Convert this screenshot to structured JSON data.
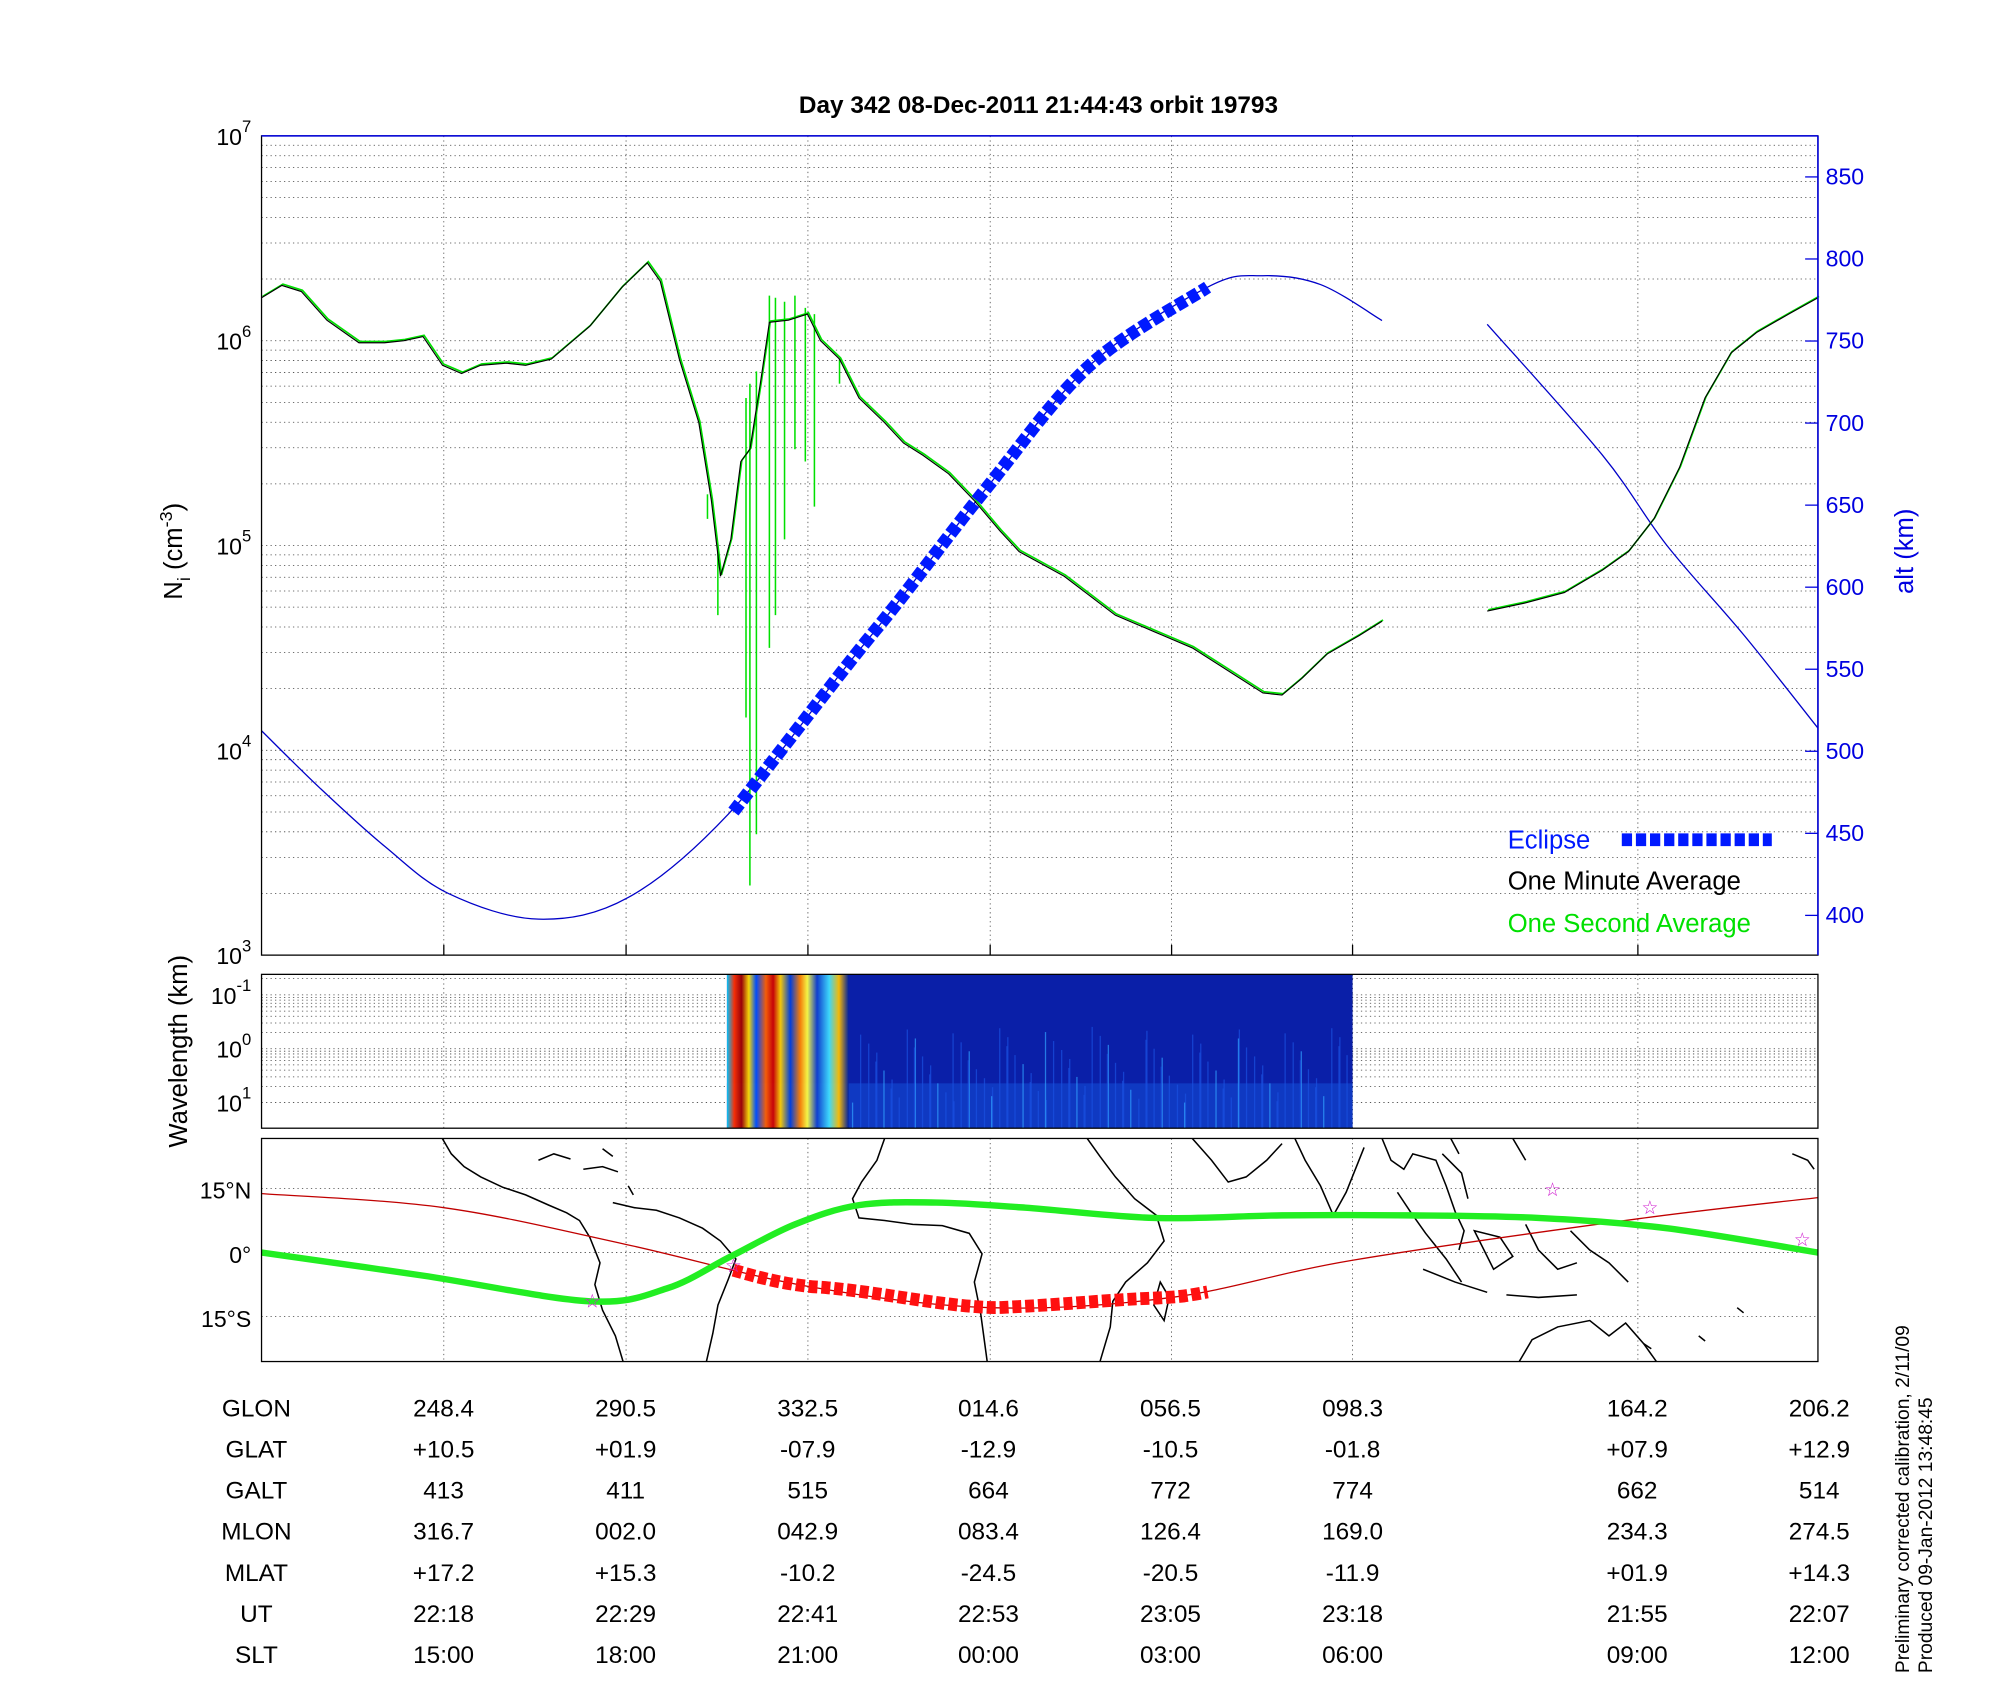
{
  "title": "Day 342  08-Dec-2011 21:44:43   orbit 19793",
  "colors": {
    "alt": "#0000c8",
    "eclipse": "#0019ff",
    "minute": "#000000",
    "second": "#00e000",
    "track": "#c00000",
    "track_eclipse": "#ff1010",
    "mag_equator": "#22ee22",
    "star": "#d020d0"
  },
  "chart_data": [
    {
      "type": "line",
      "title": "Day 342  08-Dec-2011 21:44:43   orbit 19793",
      "x_unit": "GLON (deg, unwrapped)",
      "xlim": [
        206.3,
        565.8
      ],
      "x_gridlines": [
        248.4,
        290.5,
        332.5,
        374.6,
        416.5,
        458.3,
        524.2
      ],
      "ylabel": {
        "main": "N",
        "sub": "i",
        "unit": " (cm",
        "sup": "-3",
        "close": ")"
      },
      "y_scale": "log",
      "ylim_log10": [
        3,
        7
      ],
      "y_ticks": [
        {
          "base": "10",
          "exp": "3",
          "v": 3
        },
        {
          "base": "10",
          "exp": "4",
          "v": 4
        },
        {
          "base": "10",
          "exp": "5",
          "v": 5
        },
        {
          "base": "10",
          "exp": "6",
          "v": 6
        },
        {
          "base": "10",
          "exp": "7",
          "v": 7
        }
      ],
      "y2label": "alt (km)",
      "y2lim": [
        375.8,
        875
      ],
      "y2_ticks": [
        "400",
        "450",
        "500",
        "550",
        "600",
        "650",
        "700",
        "750",
        "800",
        "850"
      ],
      "legend": {
        "placement": "bottom-right",
        "entries": [
          "Eclipse",
          "One Minute Average",
          "One Second Average"
        ]
      },
      "series": [
        {
          "name": "One Minute Average (log10 Ni)",
          "segments": [
            [
              [
                206.3,
                6.21
              ],
              [
                211.0,
                6.27
              ],
              [
                215.5,
                6.24
              ],
              [
                221.4,
                6.1
              ],
              [
                228.8,
                5.99
              ],
              [
                234.7,
                5.99
              ],
              [
                239.2,
                6.0
              ],
              [
                243.6,
                6.02
              ],
              [
                248.1,
                5.88
              ],
              [
                252.5,
                5.84
              ],
              [
                256.9,
                5.88
              ],
              [
                262.9,
                5.89
              ],
              [
                267.3,
                5.88
              ],
              [
                273.2,
                5.91
              ],
              [
                282.1,
                6.07
              ],
              [
                289.5,
                6.26
              ],
              [
                295.4,
                6.38
              ],
              [
                298.4,
                6.29
              ],
              [
                302.8,
                5.91
              ],
              [
                307.3,
                5.6
              ],
              [
                310.2,
                5.22
              ],
              [
                312.3,
                4.85
              ],
              [
                314.7,
                5.03
              ],
              [
                317.0,
                5.41
              ],
              [
                319.1,
                5.47
              ],
              [
                321.5,
                5.79
              ],
              [
                323.6,
                6.09
              ],
              [
                328.0,
                6.1
              ],
              [
                332.4,
                6.13
              ],
              [
                335.4,
                6.0
              ],
              [
                339.8,
                5.91
              ],
              [
                344.3,
                5.72
              ],
              [
                350.2,
                5.6
              ],
              [
                354.6,
                5.5
              ],
              [
                359.1,
                5.44
              ],
              [
                365.0,
                5.35
              ],
              [
                370.9,
                5.22
              ],
              [
                376.9,
                5.07
              ],
              [
                381.3,
                4.97
              ],
              [
                391.7,
                4.85
              ],
              [
                403.5,
                4.66
              ],
              [
                412.4,
                4.58
              ],
              [
                421.3,
                4.5
              ],
              [
                430.2,
                4.38
              ],
              [
                437.6,
                4.28
              ],
              [
                442.0,
                4.27
              ],
              [
                446.5,
                4.35
              ],
              [
                452.4,
                4.47
              ],
              [
                459.8,
                4.56
              ],
              [
                465.1,
                4.63
              ]
            ],
            [
              [
                489.4,
                4.68
              ],
              [
                498.3,
                4.72
              ],
              [
                507.2,
                4.77
              ],
              [
                516.0,
                4.88
              ],
              [
                522.0,
                4.97
              ],
              [
                527.9,
                5.13
              ],
              [
                533.8,
                5.38
              ],
              [
                539.7,
                5.72
              ],
              [
                545.7,
                5.94
              ],
              [
                551.6,
                6.04
              ],
              [
                559.0,
                6.13
              ],
              [
                565.8,
                6.21
              ]
            ]
          ]
        },
        {
          "name": "One Second Average spikes (glon, log10 top, log10 bottom)",
          "spikes": [
            [
              309.3,
              5.25,
              5.13
            ],
            [
              311.7,
              4.97,
              4.66
            ],
            [
              318.2,
              5.72,
              4.16
            ],
            [
              319.1,
              5.79,
              3.34
            ],
            [
              320.6,
              5.85,
              3.59
            ],
            [
              323.6,
              6.22,
              4.5
            ],
            [
              325.0,
              6.21,
              4.66
            ],
            [
              327.1,
              6.19,
              5.03
            ],
            [
              329.5,
              6.22,
              5.47
            ],
            [
              331.9,
              6.16,
              5.41
            ],
            [
              334.0,
              6.13,
              5.19
            ],
            [
              339.8,
              5.91,
              5.79
            ]
          ]
        },
        {
          "name": "alt (km)",
          "segments": [
            [
              [
                206.3,
                512.5
              ],
              [
                219.9,
                477.3
              ],
              [
                234.7,
                442.2
              ],
              [
                249.5,
                413.3
              ],
              [
                270.3,
                397.7
              ],
              [
                291.0,
                410.9
              ],
              [
                314.1,
                461.7
              ],
              [
                341.3,
                551.6
              ],
              [
                353.2,
                590.6
              ],
              [
                373.9,
                660.9
              ],
              [
                397.6,
                735.2
              ],
              [
                424.8,
                782.8
              ],
              [
                437.6,
                789.8
              ],
              [
                450.9,
                784.4
              ],
              [
                465.1,
                762.5
              ]
            ],
            [
              [
                489.4,
                760.2
              ],
              [
                516.0,
                680.5
              ],
              [
                530.8,
                625.8
              ],
              [
                548.6,
                571.1
              ],
              [
                565.8,
                514.1
              ]
            ]
          ]
        },
        {
          "name": "Eclipse (alt km)",
          "points": [
            [
              315.3,
              463.3
            ],
            [
              341.3,
              551.6
            ],
            [
              353.2,
              590.6
            ],
            [
              373.9,
              660.9
            ],
            [
              397.6,
              735.2
            ],
            [
              424.8,
              782.8
            ]
          ]
        }
      ]
    },
    {
      "type": "heatmap",
      "ylabel": "Wavelength (km)",
      "y_ticks": [
        {
          "base": "10",
          "exp": "-1"
        },
        {
          "base": "10",
          "exp": "0"
        },
        {
          "base": "10",
          "exp": "1"
        }
      ],
      "data_glon_range": [
        314.0,
        458.3
      ],
      "intense_glon_range": [
        314.0,
        341.0
      ]
    },
    {
      "type": "map",
      "lat_ticks": [
        {
          "label": "15°N",
          "lat": 15
        },
        {
          "label": "0°",
          "lat": 0
        },
        {
          "label": "15°S",
          "lat": -15
        }
      ],
      "ylim": [
        -25.5,
        26.7
      ],
      "orbit_track": [
        [
          206.3,
          13.8
        ],
        [
          248.4,
          10.5
        ],
        [
          290.5,
          1.9
        ],
        [
          332.5,
          -7.9
        ],
        [
          374.6,
          -12.9
        ],
        [
          416.5,
          -10.5
        ],
        [
          458.3,
          -1.8
        ],
        [
          524.2,
          7.9
        ],
        [
          566.2,
          12.9
        ]
      ],
      "eclipse_track_glon": [
        315.3,
        424.8
      ],
      "magnetic_equator": [
        [
          206.3,
          0
        ],
        [
          243.6,
          -5.4
        ],
        [
          282.1,
          -11.4
        ],
        [
          299.9,
          -8.4
        ],
        [
          314.7,
          -0.9
        ],
        [
          329.5,
          6.6
        ],
        [
          344.3,
          11.1
        ],
        [
          362.1,
          11.7
        ],
        [
          382.8,
          10.5
        ],
        [
          412.4,
          8.1
        ],
        [
          442.0,
          8.7
        ],
        [
          471.6,
          8.7
        ],
        [
          501.2,
          8.1
        ],
        [
          530.8,
          5.7
        ],
        [
          565.8,
          0
        ]
      ],
      "stars": [
        [
          282.7,
          -11.4
        ],
        [
          315.3,
          -3.0
        ],
        [
          504.5,
          14.7
        ],
        [
          527.0,
          10.5
        ],
        [
          562.2,
          3.0
        ]
      ]
    }
  ],
  "table": {
    "rows": [
      {
        "label": "GLON",
        "values": [
          "248.4",
          "290.5",
          "332.5",
          "014.6",
          "056.5",
          "098.3",
          "164.2",
          "206.2"
        ]
      },
      {
        "label": "GLAT",
        "values": [
          "+10.5",
          "+01.9",
          "-07.9",
          "-12.9",
          "-10.5",
          "-01.8",
          "+07.9",
          "+12.9"
        ]
      },
      {
        "label": "GALT",
        "values": [
          "413",
          "411",
          "515",
          "664",
          "772",
          "774",
          "662",
          "514"
        ]
      },
      {
        "label": "MLON",
        "values": [
          "316.7",
          "002.0",
          "042.9",
          "083.4",
          "126.4",
          "169.0",
          "234.3",
          "274.5"
        ]
      },
      {
        "label": "MLAT",
        "values": [
          "+17.2",
          "+15.3",
          "-10.2",
          "-24.5",
          "-20.5",
          "-11.9",
          "+01.9",
          "+14.3"
        ]
      },
      {
        "label": "UT",
        "values": [
          "22:18",
          "22:29",
          "22:41",
          "22:53",
          "23:05",
          "23:18",
          "21:55",
          "22:07"
        ]
      },
      {
        "label": "SLT",
        "values": [
          "15:00",
          "18:00",
          "21:00",
          "00:00",
          "03:00",
          "06:00",
          "09:00",
          "12:00"
        ]
      }
    ]
  },
  "footer": {
    "line1": "Preliminary corrected calibration, 2/11/09",
    "line2": "Produced 09-Jan-2012 13:48:45"
  }
}
